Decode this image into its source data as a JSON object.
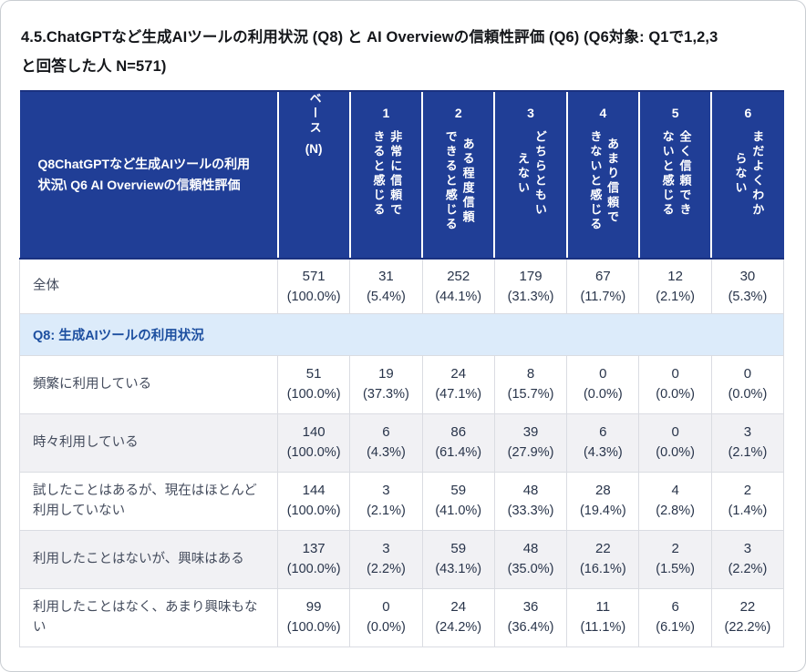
{
  "page": {
    "title": "4.5.ChatGPTなど生成AIツールの利用状況 (Q8) と AI Overviewの信頼性評価 (Q6) (Q6対象: Q1で1,2,3\nと回答した人 N=571)"
  },
  "colors": {
    "header_bg": "#203e96",
    "header_edge": "#1a3180",
    "header_text": "#ffffff",
    "section_bg": "#dcebfa",
    "section_text": "#1d4fa0",
    "stripe_bg": "#f1f1f4",
    "body_text": "#28344a",
    "grid_line": "#dadce2"
  },
  "table": {
    "corner": "Q8ChatGPTなど生成AIツールの利用状況\\ Q6 AI Overviewの信頼性評価",
    "base": {
      "label": "ベース",
      "sub": "(N)"
    },
    "scale": [
      {
        "num": "1",
        "label": "非常に信頼で\nきると感じる"
      },
      {
        "num": "2",
        "label": "ある程度信頼\nできると感じる"
      },
      {
        "num": "3",
        "label": "どちらともい\nえない"
      },
      {
        "num": "4",
        "label": "あまり信頼で\nきないと感じる"
      },
      {
        "num": "5",
        "label": "全く信頼でき\nないと感じる"
      },
      {
        "num": "6",
        "label": "まだよくわか\nらない"
      }
    ],
    "total": {
      "label": "全体",
      "cells": [
        [
          "571",
          "(100.0%)"
        ],
        [
          "31",
          "(5.4%)"
        ],
        [
          "252",
          "(44.1%)"
        ],
        [
          "179",
          "(31.3%)"
        ],
        [
          "67",
          "(11.7%)"
        ],
        [
          "12",
          "(2.1%)"
        ],
        [
          "30",
          "(5.3%)"
        ]
      ]
    },
    "section": {
      "label": "Q8: 生成AIツールの利用状況"
    },
    "rows": [
      {
        "label": "頻繁に利用している",
        "cells": [
          [
            "51",
            "(100.0%)"
          ],
          [
            "19",
            "(37.3%)"
          ],
          [
            "24",
            "(47.1%)"
          ],
          [
            "8",
            "(15.7%)"
          ],
          [
            "0",
            "(0.0%)"
          ],
          [
            "0",
            "(0.0%)"
          ],
          [
            "0",
            "(0.0%)"
          ]
        ]
      },
      {
        "label": "時々利用している",
        "cells": [
          [
            "140",
            "(100.0%)"
          ],
          [
            "6",
            "(4.3%)"
          ],
          [
            "86",
            "(61.4%)"
          ],
          [
            "39",
            "(27.9%)"
          ],
          [
            "6",
            "(4.3%)"
          ],
          [
            "0",
            "(0.0%)"
          ],
          [
            "3",
            "(2.1%)"
          ]
        ]
      },
      {
        "label": "試したことはあるが、現在はほとんど利用していない",
        "cells": [
          [
            "144",
            "(100.0%)"
          ],
          [
            "3",
            "(2.1%)"
          ],
          [
            "59",
            "(41.0%)"
          ],
          [
            "48",
            "(33.3%)"
          ],
          [
            "28",
            "(19.4%)"
          ],
          [
            "4",
            "(2.8%)"
          ],
          [
            "2",
            "(1.4%)"
          ]
        ]
      },
      {
        "label": "利用したことはないが、興味はある",
        "cells": [
          [
            "137",
            "(100.0%)"
          ],
          [
            "3",
            "(2.2%)"
          ],
          [
            "59",
            "(43.1%)"
          ],
          [
            "48",
            "(35.0%)"
          ],
          [
            "22",
            "(16.1%)"
          ],
          [
            "2",
            "(1.5%)"
          ],
          [
            "3",
            "(2.2%)"
          ]
        ]
      },
      {
        "label": "利用したことはなく、あまり興味もない",
        "cells": [
          [
            "99",
            "(100.0%)"
          ],
          [
            "0",
            "(0.0%)"
          ],
          [
            "24",
            "(24.2%)"
          ],
          [
            "36",
            "(36.4%)"
          ],
          [
            "11",
            "(11.1%)"
          ],
          [
            "6",
            "(6.1%)"
          ],
          [
            "22",
            "(22.2%)"
          ]
        ]
      }
    ]
  }
}
